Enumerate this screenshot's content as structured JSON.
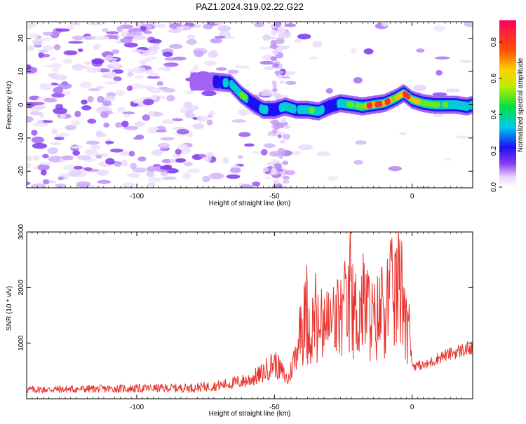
{
  "title": "PAZ1.2024.319.02.22.G22",
  "chart_data": [
    {
      "type": "heatmap",
      "xlabel": "Height of straight line (km)",
      "ylabel": "Frequency (Hz)",
      "xlim": [
        -140,
        22
      ],
      "ylim": [
        -25,
        25
      ],
      "x_ticks": [
        -100,
        -50,
        0
      ],
      "y_ticks": [
        -20,
        -10,
        0,
        10,
        20
      ],
      "colorbar": {
        "label": "Normalized spectral amplitude",
        "range": [
          0,
          0.92
        ],
        "ticks": [
          "0.0",
          "0.2",
          "0.4",
          "0.6",
          "0.8"
        ]
      },
      "ridge": {
        "x": [
          -80,
          -72,
          -66,
          -62,
          -58,
          -54,
          -50,
          -46,
          -42,
          -38,
          -34,
          -30,
          -26,
          -22,
          -18,
          -14,
          -10,
          -6,
          -3,
          0,
          4,
          8,
          12,
          16,
          20,
          22
        ],
        "frequency": [
          7,
          7,
          6.5,
          3,
          0.5,
          -1.5,
          -1.5,
          -0.5,
          -1.5,
          -1.5,
          -2,
          -0.5,
          0.5,
          0,
          -0.5,
          0,
          0.5,
          2,
          3.5,
          1.5,
          0.5,
          0,
          0,
          0,
          -0.5,
          0
        ],
        "amplitude": [
          0.15,
          0.2,
          0.4,
          0.55,
          0.3,
          0.4,
          0.3,
          0.45,
          0.4,
          0.5,
          0.45,
          0.3,
          0.35,
          0.55,
          0.6,
          0.9,
          0.85,
          0.65,
          0.85,
          0.7,
          0.6,
          0.55,
          0.5,
          0.45,
          0.45,
          0.4
        ]
      }
    },
    {
      "type": "line",
      "xlabel": "Height of straight line (km)",
      "ylabel": "SNR (10 * v/v)",
      "xlim": [
        -140,
        22
      ],
      "ylim": [
        0,
        3000
      ],
      "x_ticks": [
        -100,
        -50,
        0
      ],
      "y_ticks": [
        1000,
        2000,
        3000
      ],
      "color": "#e8332e",
      "envelope": {
        "x": [
          -140,
          -120,
          -100,
          -80,
          -70,
          -60,
          -55,
          -50,
          -45,
          -42,
          -40,
          -38,
          -35,
          -30,
          -25,
          -22,
          -20,
          -18,
          -16,
          -14,
          -12,
          -10,
          -8,
          -5,
          -3,
          -1,
          0,
          5,
          10,
          20,
          22
        ],
        "snr": [
          150,
          160,
          170,
          180,
          220,
          300,
          400,
          600,
          300,
          800,
          1400,
          1500,
          1300,
          1400,
          1600,
          1700,
          1600,
          1800,
          1700,
          1400,
          1600,
          1800,
          1900,
          2100,
          2000,
          1200,
          600,
          600,
          750,
          900,
          900
        ]
      }
    }
  ]
}
